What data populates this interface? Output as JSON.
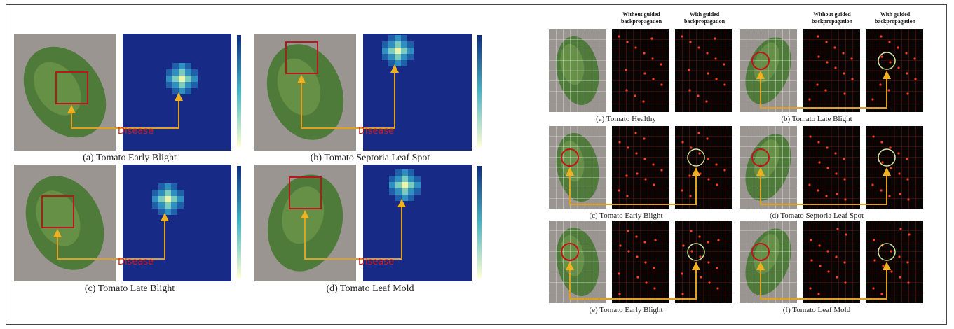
{
  "left_figure": {
    "panels": [
      {
        "caption": "(a)  Tomato Early Blight",
        "annotation": "Disease"
      },
      {
        "caption": "(b)  Tomato Septoria Leaf Spot",
        "annotation": "Disease"
      },
      {
        "caption": "(c) Tomato Late Blight",
        "annotation": "Disease"
      },
      {
        "caption": "(d)  Tomato Leaf Mold",
        "annotation": "Disease"
      }
    ]
  },
  "right_figure": {
    "column_headers": [
      "Without guided backpropagation",
      "With guided backpropagation"
    ],
    "panels": [
      {
        "caption": "(a)   Tomato Healthy"
      },
      {
        "caption": "(b)  Tomato Late Blight"
      },
      {
        "caption": "(c)  Tomato Early Blight"
      },
      {
        "caption": "(d)  Tomato Septoria Leaf Spot"
      },
      {
        "caption": "(e)   Tomato Early Blight"
      },
      {
        "caption": "(f)  Tomato Leaf Mold"
      }
    ]
  }
}
